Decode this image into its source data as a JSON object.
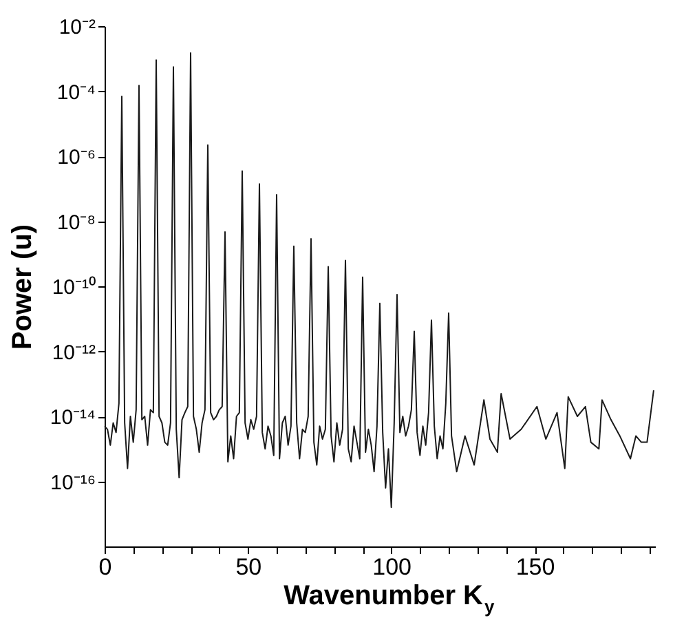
{
  "chart_data": {
    "type": "line",
    "xlabel": "Wavenumber K$_{y}$",
    "ylabel": "Power (u)",
    "log": "y",
    "grid": false,
    "marker": "none",
    "line_style": "solid",
    "xlim": [
      0,
      192
    ],
    "ylim": [
      1e-18,
      0.01
    ],
    "xticks": [
      0,
      {
        "value": 10,
        "label": null
      },
      {
        "value": 20,
        "label": null
      },
      {
        "value": 30,
        "label": null
      },
      {
        "value": 40,
        "label": null
      },
      50,
      {
        "value": 60,
        "label": null
      },
      {
        "value": 70,
        "label": null
      },
      {
        "value": 80,
        "label": null
      },
      {
        "value": 90,
        "label": null
      },
      100,
      {
        "value": 110,
        "label": null
      },
      {
        "value": 120,
        "label": null
      },
      {
        "value": 130,
        "label": null
      },
      {
        "value": 140,
        "label": null
      },
      150,
      {
        "value": 160,
        "label": null
      },
      {
        "value": 170,
        "label": null
      },
      {
        "value": 180,
        "label": null
      },
      {
        "value": 190,
        "label": null
      }
    ],
    "yticks": [
      {
        "value": 0.01,
        "label": "10⁻²"
      },
      {
        "value": 0.0001,
        "label": "10⁻⁴"
      },
      {
        "value": 1e-06,
        "label": "10⁻⁶"
      },
      {
        "value": 1e-08,
        "label": "10⁻⁸"
      },
      {
        "value": 1e-10,
        "label": "10⁻¹⁰"
      },
      {
        "value": 1e-12,
        "label": "10⁻¹²"
      },
      {
        "value": 1e-14,
        "label": "10⁻¹⁴"
      },
      {
        "value": 1e-16,
        "label": "10⁻¹⁶"
      }
    ],
    "series": [
      {
        "color": "#1a1a1a",
        "x": [
          0,
          1,
          2,
          3,
          4,
          5,
          6,
          7,
          8,
          9,
          10,
          11,
          12,
          13,
          14,
          15,
          16,
          17,
          18,
          19,
          20,
          21,
          22,
          23,
          24,
          25,
          26,
          27,
          28,
          29,
          30,
          31,
          32,
          33,
          34,
          35,
          36,
          37,
          38,
          39,
          40,
          41,
          42,
          43,
          44,
          45,
          46,
          47,
          48,
          49,
          50,
          51,
          52,
          53,
          54,
          55,
          56,
          57,
          58,
          59,
          60,
          61,
          62,
          63,
          64,
          65,
          66,
          67,
          68,
          69,
          70,
          71,
          72,
          73,
          74,
          75,
          76,
          77,
          78,
          79,
          80,
          81,
          82,
          83,
          84,
          85,
          86,
          87,
          88,
          89,
          90,
          91,
          92,
          93,
          94,
          95,
          96,
          97,
          98,
          99,
          100,
          101,
          102,
          103,
          104,
          105,
          106,
          107,
          108,
          109,
          110,
          111,
          112,
          113,
          114,
          115,
          116,
          117,
          118,
          119,
          120,
          121,
          122.8,
          125.7,
          128.9,
          132.3,
          134.4,
          137,
          138.3,
          141.4,
          145.3,
          150.8,
          153.9,
          157.8,
          160.5,
          161.7,
          164.9,
          167.7,
          169.6,
          172.4,
          173.5,
          176.6,
          179.7,
          183.4,
          185.3,
          187.2,
          189.2,
          191.5
        ],
        "values": [
          5e-15,
          4e-15,
          1.3e-15,
          6.3e-15,
          3.2e-15,
          2.5e-14,
          6.9e-05,
          6.3e-15,
          2.5e-16,
          1e-14,
          1.6e-15,
          1.6e-14,
          0.00015,
          7.9e-15,
          1e-14,
          1.3e-15,
          1.6e-14,
          1.3e-14,
          0.00091,
          1e-14,
          6.3e-15,
          1.6e-15,
          1.3e-15,
          6.3e-15,
          0.00056,
          4e-15,
          1.3e-16,
          7.9e-15,
          1.3e-14,
          2e-14,
          0.0015,
          1e-14,
          4e-15,
          7.9e-16,
          6.3e-15,
          1.6e-14,
          2.2e-06,
          1.3e-14,
          7.9e-15,
          1e-14,
          1.6e-14,
          2e-14,
          4.7e-09,
          4e-16,
          2.5e-15,
          5e-16,
          1e-14,
          1.3e-14,
          3.5e-07,
          6.3e-15,
          2e-15,
          7.9e-15,
          4e-15,
          1e-14,
          1.4e-07,
          3.2e-15,
          1e-15,
          5e-15,
          2.5e-15,
          6.3e-16,
          6.5e-08,
          5e-16,
          6.3e-15,
          1e-14,
          1.3e-15,
          5e-15,
          1.7e-09,
          6.3e-15,
          5e-16,
          4e-15,
          3.2e-15,
          1e-14,
          2.9e-09,
          1.6e-15,
          3.2e-16,
          5e-15,
          2e-15,
          4e-15,
          4e-10,
          2.5e-15,
          4e-16,
          6.3e-15,
          1.3e-15,
          4e-15,
          6.2e-10,
          1e-15,
          4e-16,
          5e-15,
          1.6e-15,
          5e-16,
          1.9e-10,
          7.9e-16,
          4e-15,
          1.3e-15,
          2e-16,
          5e-15,
          3e-11,
          3.2e-15,
          6.3e-17,
          1e-15,
          1.6e-17,
          6.3e-15,
          5.6e-11,
          3.2e-15,
          1e-14,
          2.5e-15,
          5e-15,
          1.6e-14,
          4.1e-12,
          3.2e-15,
          6.3e-16,
          5e-15,
          1.3e-15,
          1.3e-14,
          9.1e-12,
          5e-15,
          5e-16,
          2.5e-15,
          1e-15,
          2.5e-14,
          1.5e-11,
          2.5e-15,
          2e-16,
          2.5e-15,
          3.2e-16,
          3.2e-14,
          2e-15,
          7.9e-16,
          5e-14,
          2e-15,
          4e-15,
          2e-14,
          2e-15,
          1.3e-14,
          2.5e-16,
          4e-14,
          1e-14,
          2e-14,
          1.6e-15,
          1e-15,
          3.2e-14,
          7.9e-15,
          2.5e-15,
          5e-16,
          2.5e-15,
          1.6e-15,
          1.6e-15,
          6.3e-14
        ]
      }
    ]
  }
}
